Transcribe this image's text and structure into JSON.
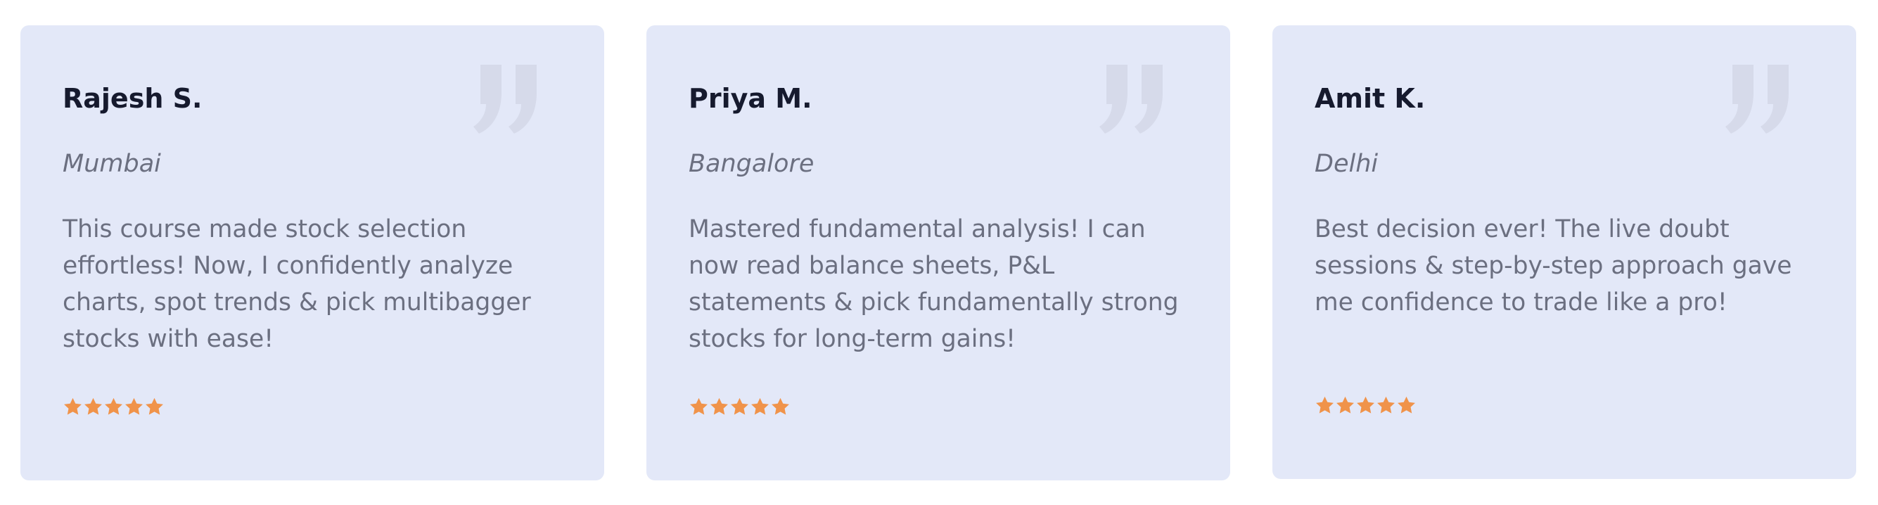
{
  "testimonials": [
    {
      "name": "Rajesh S.",
      "location": "Mumbai",
      "text": "This course made stock selection effortless! Now, I confidently analyze charts, spot trends & pick multibagger stocks with ease!",
      "rating": 5,
      "quote_icon": "quote-icon"
    },
    {
      "name": "Priya M.",
      "location": "Bangalore",
      "text": "Mastered fundamental analysis! I can now read balance sheets, P&L statements & pick fundamentally strong stocks for long-term gains!",
      "rating": 5,
      "quote_icon": "quote-icon"
    },
    {
      "name": "Amit K.",
      "location": "Delhi",
      "text": "Best decision ever! The live doubt sessions & step-by-step approach gave me confidence to trade like a pro!",
      "rating": 5,
      "quote_icon": "quote-icon"
    }
  ],
  "colors": {
    "card_background": "#e3e8f8",
    "name": "#161a2e",
    "muted_text": "#6b6f80",
    "star": "#f0934a",
    "quote_mark": "#d6daea"
  }
}
